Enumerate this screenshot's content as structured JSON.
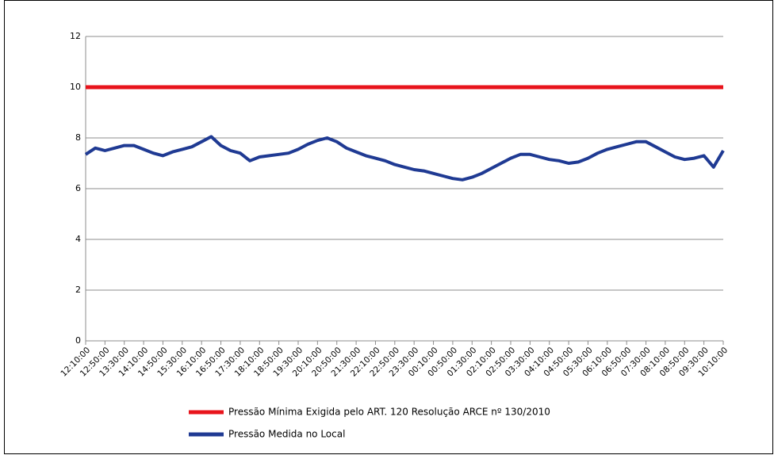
{
  "chart_data": {
    "type": "line",
    "categories": [
      "12:10:00",
      null,
      "12:50:00",
      null,
      "13:30:00",
      null,
      "14:10:00",
      null,
      "14:50:00",
      null,
      "15:30:00",
      null,
      "16:10:00",
      null,
      "16:50:00",
      null,
      "17:30:00",
      null,
      "18:10:00",
      null,
      "18:50:00",
      null,
      "19:30:00",
      null,
      "20:10:00",
      null,
      "20:50:00",
      null,
      "21:30:00",
      null,
      "22:10:00",
      null,
      "22:50:00",
      null,
      "23:30:00",
      null,
      "00:10:00",
      null,
      "00:50:00",
      null,
      "01:30:00",
      null,
      "02:10:00",
      null,
      "02:50:00",
      null,
      "03:30:00",
      null,
      "04:10:00",
      null,
      "04:50:00",
      null,
      "05:30:00",
      null,
      "06:10:00",
      null,
      "06:50:00",
      null,
      "07:30:00",
      null,
      "08:10:00",
      null,
      "08:50:00",
      null,
      "09:30:00",
      null,
      "10:10:00"
    ],
    "series": [
      {
        "name": "Pressão Mínima Exigida pelo ART. 120 Resolução ARCE nº 130/2010",
        "color": "#e8141c",
        "values": [
          10,
          10,
          10,
          10,
          10,
          10,
          10,
          10,
          10,
          10,
          10,
          10,
          10,
          10,
          10,
          10,
          10,
          10,
          10,
          10,
          10,
          10,
          10,
          10,
          10,
          10,
          10,
          10,
          10,
          10,
          10,
          10,
          10,
          10,
          10,
          10,
          10,
          10,
          10,
          10,
          10,
          10,
          10,
          10,
          10,
          10,
          10,
          10,
          10,
          10,
          10,
          10,
          10,
          10,
          10,
          10,
          10,
          10,
          10,
          10,
          10,
          10,
          10,
          10,
          10,
          10,
          10
        ]
      },
      {
        "name": "Pressão Medida no Local",
        "color": "#1f3a93",
        "values": [
          7.35,
          7.6,
          7.5,
          7.6,
          7.7,
          7.7,
          7.55,
          7.4,
          7.3,
          7.45,
          7.55,
          7.65,
          7.85,
          8.05,
          7.7,
          7.5,
          7.4,
          7.1,
          7.25,
          7.3,
          7.35,
          7.4,
          7.55,
          7.75,
          7.9,
          8.0,
          7.85,
          7.6,
          7.45,
          7.3,
          7.2,
          7.1,
          6.95,
          6.85,
          6.75,
          6.7,
          6.6,
          6.5,
          6.4,
          6.35,
          6.45,
          6.6,
          6.8,
          7.0,
          7.2,
          7.35,
          7.35,
          7.25,
          7.15,
          7.1,
          7.0,
          7.05,
          7.2,
          7.4,
          7.55,
          7.65,
          7.75,
          7.85,
          7.85,
          7.65,
          7.45,
          7.25,
          7.15,
          7.2,
          7.3,
          6.85,
          7.5
        ]
      }
    ],
    "ylim": [
      0,
      12
    ],
    "yticks": [
      0,
      2,
      4,
      6,
      8,
      10,
      12
    ],
    "grid": true,
    "legend": "bottom"
  }
}
